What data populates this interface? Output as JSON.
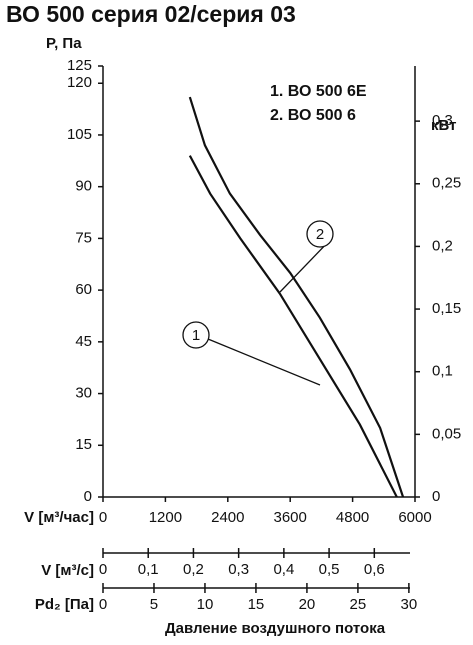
{
  "chart_data": {
    "type": "line",
    "title": "ВО 500 серия 02/серия 03",
    "ylabel": "P, Па",
    "y2label": "кВт",
    "xlabel": "V [м³/час]",
    "xlim": [
      0,
      6000
    ],
    "xticks": [
      0,
      1200,
      2400,
      3600,
      4800,
      6000
    ],
    "ylim": [
      0,
      125
    ],
    "yticks": [
      0,
      15,
      30,
      45,
      60,
      75,
      90,
      105,
      120,
      125
    ],
    "y2lim": [
      0,
      0.344
    ],
    "y2ticks": [
      0,
      {
        "value": 0.05,
        "label": "0,05"
      },
      {
        "value": 0.1,
        "label": "0,1"
      },
      {
        "value": 0.15,
        "label": "0,15"
      },
      {
        "value": 0.2,
        "label": "0,2"
      },
      {
        "value": 0.25,
        "label": "0,25"
      },
      {
        "value": 0.3,
        "label": "0,3"
      }
    ],
    "legend": [
      "1. ВО 500 6Е",
      "2. ВО 500 6"
    ],
    "series": [
      {
        "name": "1",
        "color": "#111111",
        "x": [
          1670,
          2060,
          2640,
          3400,
          4170,
          4940,
          5650
        ],
        "values": [
          99,
          88,
          75,
          59,
          40,
          21,
          0
        ]
      },
      {
        "name": "2",
        "color": "#111111",
        "x": [
          1670,
          1960,
          2440,
          3020,
          3600,
          4170,
          4750,
          5330,
          5770
        ],
        "values": [
          116,
          102,
          88,
          76,
          65,
          52,
          37,
          20,
          0
        ]
      }
    ],
    "flow_axis": {
      "label": "V [м³/с]",
      "xlim": [
        0,
        0.69
      ],
      "xticks": [
        0,
        {
          "value": 0.1,
          "label": "0,1"
        },
        {
          "value": 0.2,
          "label": "0,2"
        },
        {
          "value": 0.3,
          "label": "0,3"
        },
        {
          "value": 0.4,
          "label": "0,4"
        },
        {
          "value": 0.5,
          "label": "0,5"
        },
        {
          "value": 0.6,
          "label": "0,6"
        }
      ]
    },
    "pd_axis": {
      "label": "Pd₂ [Па]",
      "xlim": [
        0,
        30.6
      ],
      "xticks": [
        0,
        5,
        10,
        15,
        20,
        25,
        30
      ],
      "caption": "Давление воздушного потока"
    }
  }
}
